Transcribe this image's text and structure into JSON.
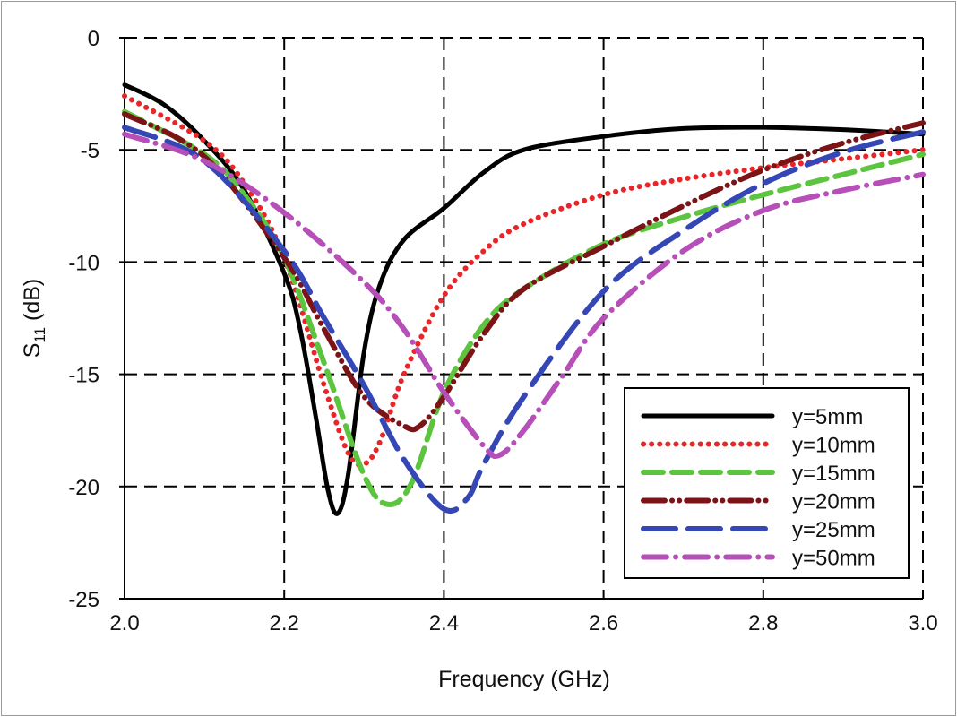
{
  "chart_data": {
    "type": "line",
    "title": "",
    "xlabel": "Frequency (GHz)",
    "ylabel_main": "S",
    "ylabel_sub": "11",
    "ylabel_unit": " (dB)",
    "xlim": [
      2.0,
      3.0
    ],
    "ylim": [
      -25,
      0
    ],
    "xticks": [
      "2.0",
      "2.2",
      "2.4",
      "2.6",
      "2.8",
      "3.0"
    ],
    "yticks": [
      "0",
      "-5",
      "-10",
      "-15",
      "-20",
      "-25"
    ],
    "grid": true,
    "legend_position": "bottom-right",
    "series": [
      {
        "name": "y=5mm",
        "color": "#000000",
        "style": "solid",
        "x": [
          2.0,
          2.05,
          2.1,
          2.15,
          2.2,
          2.22,
          2.24,
          2.255,
          2.267,
          2.28,
          2.3,
          2.32,
          2.35,
          2.4,
          2.45,
          2.5,
          2.6,
          2.7,
          2.8,
          2.9,
          3.0
        ],
        "y": [
          -2.1,
          -3.0,
          -4.6,
          -6.8,
          -10.5,
          -13,
          -17,
          -20.2,
          -21.2,
          -19.5,
          -14,
          -11,
          -9,
          -7.6,
          -6.0,
          -5.0,
          -4.4,
          -4.05,
          -4.0,
          -4.1,
          -4.3
        ]
      },
      {
        "name": "y=10mm",
        "color": "#e8262a",
        "style": "dotted",
        "x": [
          2.0,
          2.1,
          2.15,
          2.2,
          2.25,
          2.28,
          2.3,
          2.32,
          2.35,
          2.4,
          2.45,
          2.5,
          2.6,
          2.7,
          2.8,
          2.9,
          3.0
        ],
        "y": [
          -2.6,
          -4.6,
          -6.5,
          -9.8,
          -15.5,
          -18.5,
          -19.0,
          -18,
          -15,
          -11.5,
          -9.5,
          -8.3,
          -7.0,
          -6.3,
          -5.8,
          -5.4,
          -5.0
        ]
      },
      {
        "name": "y=15mm",
        "color": "#5cc43e",
        "style": "dashed",
        "x": [
          2.0,
          2.1,
          2.15,
          2.2,
          2.25,
          2.3,
          2.33,
          2.36,
          2.4,
          2.45,
          2.5,
          2.6,
          2.7,
          2.8,
          2.9,
          3.0
        ],
        "y": [
          -3.3,
          -5.2,
          -7,
          -9.8,
          -14.5,
          -19.5,
          -20.8,
          -19.8,
          -15.8,
          -12.8,
          -11.2,
          -9.2,
          -8.0,
          -7.0,
          -6.1,
          -5.2
        ]
      },
      {
        "name": "y=20mm",
        "color": "#7b1416",
        "style": "dash-dot-dot",
        "x": [
          2.0,
          2.1,
          2.2,
          2.25,
          2.3,
          2.35,
          2.37,
          2.4,
          2.45,
          2.5,
          2.6,
          2.7,
          2.8,
          2.9,
          3.0
        ],
        "y": [
          -3.4,
          -5.3,
          -9.8,
          -13,
          -16,
          -17.3,
          -17.3,
          -16,
          -13.2,
          -11.2,
          -9.3,
          -7.5,
          -5.9,
          -4.7,
          -3.8
        ]
      },
      {
        "name": "y=25mm",
        "color": "#3447b5",
        "style": "long-dash",
        "x": [
          2.0,
          2.1,
          2.2,
          2.25,
          2.3,
          2.35,
          2.4,
          2.43,
          2.45,
          2.5,
          2.6,
          2.7,
          2.8,
          2.9,
          3.0
        ],
        "y": [
          -4.0,
          -5.5,
          -9.5,
          -12.5,
          -15.5,
          -18.8,
          -21.0,
          -20.5,
          -19,
          -16,
          -11.3,
          -8.6,
          -6.5,
          -5.1,
          -4.2
        ]
      },
      {
        "name": "y=50mm",
        "color": "#b64fb8",
        "style": "dash-dot",
        "x": [
          2.0,
          2.1,
          2.2,
          2.3,
          2.35,
          2.4,
          2.45,
          2.47,
          2.5,
          2.55,
          2.6,
          2.7,
          2.8,
          2.9,
          3.0
        ],
        "y": [
          -4.3,
          -5.5,
          -7.8,
          -10.9,
          -13,
          -15.8,
          -18.2,
          -18.6,
          -17.5,
          -15,
          -12.5,
          -9.5,
          -7.7,
          -6.8,
          -6.1
        ]
      }
    ]
  }
}
